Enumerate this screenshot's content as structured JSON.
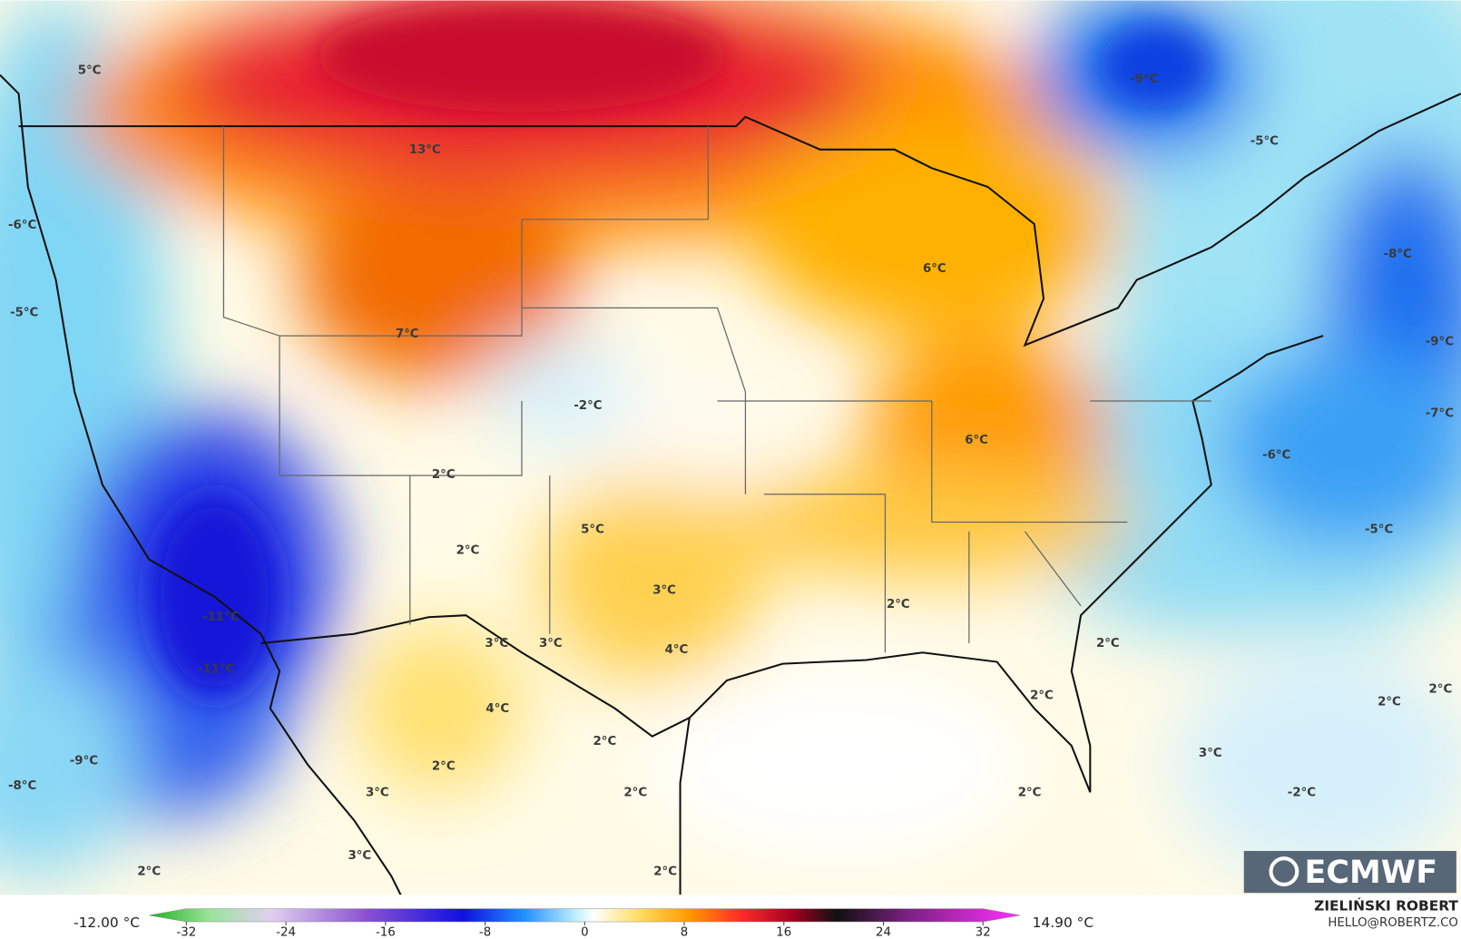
{
  "map_labels": [
    "5°C",
    "13°C",
    "-9°C",
    "-5°C",
    "-6°C",
    "-8°C",
    "6°C",
    "-5°C",
    "7°C",
    "-9°C",
    "-2°C",
    "-7°C",
    "6°C",
    "-6°C",
    "2°C",
    "-5°C",
    "5°C",
    "2°C",
    "3°C",
    "2°C",
    "-11°C",
    "3°C",
    "3°C",
    "2°C",
    "4°C",
    "-11°C",
    "2°C",
    "2°C",
    "2°C",
    "4°C",
    "2°C",
    "3°C",
    "-9°C",
    "2°C",
    "-8°C",
    "3°C",
    "2°C",
    "2°C",
    "-2°C",
    "3°C",
    "2°C",
    "2°C"
  ],
  "colorbar": {
    "min_label": "-12.00 °C",
    "max_label": "14.90 °C",
    "ticks": [
      -32,
      -24,
      -16,
      -8,
      0,
      8,
      16,
      24,
      32
    ]
  },
  "branding": {
    "logo": "ECMWF",
    "author": "ZIELIŃSKI ROBERT",
    "contact": "HELLO@ROBERTZ.CO"
  }
}
